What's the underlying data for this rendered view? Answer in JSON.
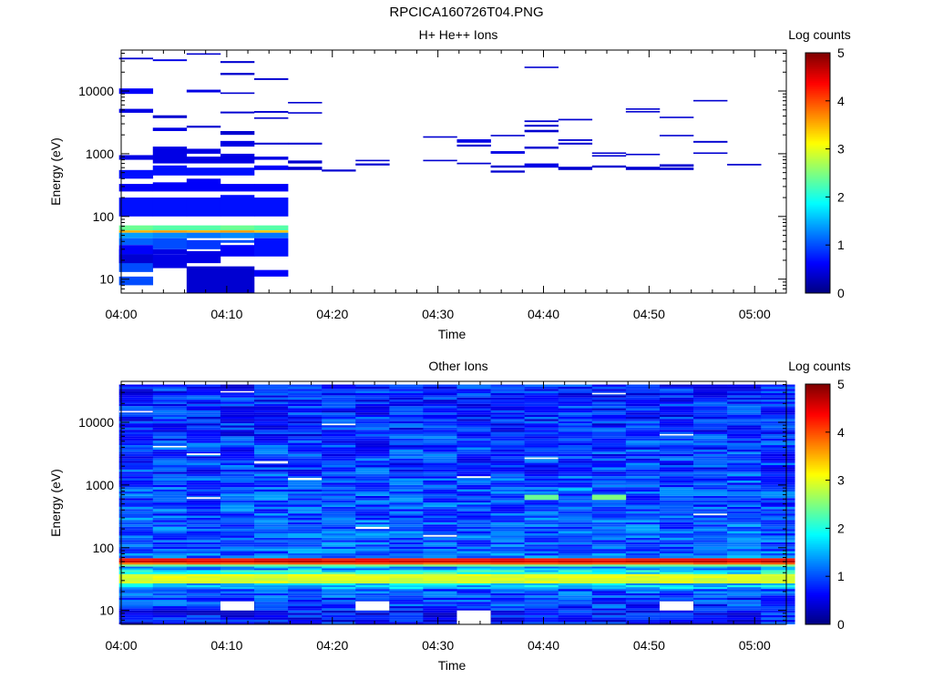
{
  "figure_title": "RPCICA160726T04.PNG",
  "colors": {
    "colormap": [
      "#00007f",
      "#0000ff",
      "#007fff",
      "#00ffff",
      "#7fff7f",
      "#ffff00",
      "#ff7f00",
      "#ff0000",
      "#7f0000"
    ],
    "background": "#ffffff",
    "axis": "#000000"
  },
  "chart_data": [
    {
      "type": "heatmap",
      "title": "H+ He++ Ions",
      "xlabel": "Time",
      "ylabel": "Energy (eV)",
      "x_ticks": [
        "04:00",
        "04:10",
        "04:20",
        "04:30",
        "04:40",
        "04:50",
        "05:00"
      ],
      "x_tick_minutes": [
        0,
        10,
        20,
        30,
        40,
        50,
        60
      ],
      "xlim_minutes": [
        0,
        63
      ],
      "y_scale": "log",
      "ylim": [
        6,
        45000
      ],
      "y_ticks": [
        "10",
        "100",
        "1000",
        "10000"
      ],
      "y_tick_values": [
        10,
        100,
        1000,
        10000
      ],
      "colorbar": {
        "label": "Log counts",
        "range": [
          0,
          5
        ],
        "ticks": [
          "0",
          "1",
          "2",
          "3",
          "4",
          "5"
        ]
      },
      "time_bins_minutes": [
        1.4,
        4.6,
        7.8,
        11.0,
        14.2,
        17.4,
        20.6,
        23.8,
        27.0,
        30.2,
        33.4,
        36.6,
        39.8,
        43.0,
        46.2,
        49.4,
        52.6,
        55.8,
        59.0,
        62.2
      ],
      "cells": [
        [
          0,
          8,
          11,
          1
        ],
        [
          0,
          13,
          30,
          1
        ],
        [
          0,
          60,
          72,
          2.4
        ],
        [
          0,
          55,
          60,
          3.5
        ],
        [
          0,
          45,
          55,
          1.4
        ],
        [
          0,
          35,
          45,
          1.1
        ],
        [
          0,
          25,
          35,
          0.6
        ],
        [
          0,
          18,
          25,
          0.4
        ],
        [
          0,
          100,
          200,
          0.7
        ],
        [
          0,
          250,
          330,
          0.6
        ],
        [
          0,
          400,
          550,
          0.7
        ],
        [
          0,
          800,
          950,
          0.5
        ],
        [
          0,
          4500,
          5200,
          0.5
        ],
        [
          0,
          9000,
          11000,
          0.6
        ],
        [
          0,
          32000,
          34000,
          0.4
        ],
        [
          1,
          15,
          25,
          0.5
        ],
        [
          1,
          60,
          72,
          2.3
        ],
        [
          1,
          55,
          60,
          3.6
        ],
        [
          1,
          45,
          55,
          1.3
        ],
        [
          1,
          30,
          45,
          1.0
        ],
        [
          1,
          25,
          30,
          0.5
        ],
        [
          1,
          100,
          200,
          0.7
        ],
        [
          1,
          250,
          350,
          0.6
        ],
        [
          1,
          450,
          650,
          0.7
        ],
        [
          1,
          700,
          1300,
          0.5
        ],
        [
          1,
          2300,
          2600,
          0.5
        ],
        [
          1,
          3700,
          4100,
          0.4
        ],
        [
          1,
          30000,
          32000,
          0.5
        ],
        [
          2,
          6,
          16,
          0.4
        ],
        [
          2,
          60,
          72,
          2.3
        ],
        [
          2,
          55,
          60,
          3.5
        ],
        [
          2,
          45,
          55,
          1.2
        ],
        [
          2,
          30,
          42,
          0.9
        ],
        [
          2,
          18,
          28,
          0.5
        ],
        [
          2,
          100,
          200,
          0.7
        ],
        [
          2,
          250,
          400,
          0.6
        ],
        [
          2,
          450,
          600,
          0.7
        ],
        [
          2,
          700,
          900,
          0.5
        ],
        [
          2,
          1000,
          1200,
          0.5
        ],
        [
          2,
          2600,
          2800,
          0.4
        ],
        [
          2,
          9500,
          10500,
          0.5
        ],
        [
          2,
          38000,
          40000,
          0.4
        ],
        [
          3,
          6,
          16,
          0.4
        ],
        [
          3,
          60,
          72,
          2.4
        ],
        [
          3,
          55,
          60,
          3.6
        ],
        [
          3,
          45,
          55,
          1.3
        ],
        [
          3,
          38,
          42,
          1.0
        ],
        [
          3,
          23,
          35,
          0.6
        ],
        [
          3,
          100,
          220,
          0.7
        ],
        [
          3,
          250,
          330,
          0.6
        ],
        [
          3,
          450,
          600,
          0.7
        ],
        [
          3,
          700,
          1000,
          0.5
        ],
        [
          3,
          1300,
          1600,
          0.5
        ],
        [
          3,
          2000,
          2300,
          0.4
        ],
        [
          3,
          4400,
          4700,
          0.4
        ],
        [
          3,
          9000,
          9500,
          0.4
        ],
        [
          3,
          18000,
          19500,
          0.4
        ],
        [
          3,
          28000,
          30000,
          0.4
        ],
        [
          4,
          11,
          14,
          0.6
        ],
        [
          4,
          60,
          72,
          2.3
        ],
        [
          4,
          55,
          60,
          3.4
        ],
        [
          4,
          45,
          55,
          1.2
        ],
        [
          4,
          23,
          45,
          0.7
        ],
        [
          4,
          100,
          200,
          0.7
        ],
        [
          4,
          250,
          330,
          0.6
        ],
        [
          4,
          550,
          650,
          0.6
        ],
        [
          4,
          800,
          900,
          0.5
        ],
        [
          4,
          1400,
          1500,
          0.4
        ],
        [
          4,
          3600,
          3800,
          0.4
        ],
        [
          4,
          4500,
          4800,
          0.4
        ],
        [
          4,
          15000,
          16000,
          0.4
        ],
        [
          5,
          550,
          620,
          0.4
        ],
        [
          5,
          700,
          780,
          0.4
        ],
        [
          5,
          1400,
          1500,
          0.4
        ],
        [
          5,
          4400,
          4600,
          0.4
        ],
        [
          5,
          6400,
          6700,
          0.4
        ],
        [
          6,
          520,
          560,
          0.4
        ],
        [
          7,
          650,
          700,
          0.4
        ],
        [
          7,
          760,
          800,
          0.4
        ],
        [
          9,
          760,
          800,
          0.4
        ],
        [
          9,
          1800,
          1900,
          0.4
        ],
        [
          10,
          1300,
          1400,
          0.4
        ],
        [
          10,
          1500,
          1700,
          0.5
        ],
        [
          10,
          680,
          720,
          0.4
        ],
        [
          11,
          500,
          540,
          0.4
        ],
        [
          11,
          600,
          650,
          0.4
        ],
        [
          11,
          1000,
          1100,
          0.5
        ],
        [
          11,
          1900,
          2000,
          0.4
        ],
        [
          12,
          600,
          700,
          0.5
        ],
        [
          12,
          1200,
          1300,
          0.4
        ],
        [
          12,
          2200,
          2400,
          0.4
        ],
        [
          12,
          2700,
          2900,
          0.4
        ],
        [
          12,
          3200,
          3400,
          0.4
        ],
        [
          12,
          23500,
          24500,
          0.4
        ],
        [
          13,
          550,
          620,
          0.4
        ],
        [
          13,
          1400,
          1500,
          0.4
        ],
        [
          13,
          1600,
          1700,
          0.4
        ],
        [
          13,
          3400,
          3600,
          0.4
        ],
        [
          14,
          600,
          650,
          0.4
        ],
        [
          14,
          900,
          950,
          0.4
        ],
        [
          14,
          1000,
          1050,
          0.4
        ],
        [
          15,
          550,
          620,
          0.4
        ],
        [
          15,
          950,
          1000,
          0.4
        ],
        [
          15,
          4600,
          4800,
          0.4
        ],
        [
          15,
          5100,
          5300,
          0.4
        ],
        [
          16,
          550,
          600,
          0.4
        ],
        [
          16,
          620,
          680,
          0.4
        ],
        [
          16,
          1900,
          2000,
          0.4
        ],
        [
          16,
          3700,
          3900,
          0.4
        ],
        [
          17,
          1000,
          1050,
          0.4
        ],
        [
          17,
          1500,
          1600,
          0.4
        ],
        [
          17,
          7000,
          7200,
          0.4
        ],
        [
          18,
          650,
          690,
          0.4
        ]
      ]
    },
    {
      "type": "heatmap",
      "title": "Other Ions",
      "xlabel": "Time",
      "ylabel": "Energy (eV)",
      "x_ticks": [
        "04:00",
        "04:10",
        "04:20",
        "04:30",
        "04:40",
        "04:50",
        "05:00"
      ],
      "x_tick_minutes": [
        0,
        10,
        20,
        30,
        40,
        50,
        60
      ],
      "xlim_minutes": [
        0,
        63
      ],
      "y_scale": "log",
      "ylim": [
        6,
        45000
      ],
      "y_ticks": [
        "10",
        "100",
        "1000",
        "10000"
      ],
      "y_tick_values": [
        10,
        100,
        1000,
        10000
      ],
      "colorbar": {
        "label": "Log counts",
        "range": [
          0,
          5
        ],
        "ticks": [
          "0",
          "1",
          "2",
          "3",
          "4",
          "5"
        ]
      },
      "time_bins_minutes": [
        1.4,
        4.6,
        7.8,
        11.0,
        14.2,
        17.4,
        20.6,
        23.8,
        27.0,
        30.2,
        33.4,
        36.6,
        39.8,
        43.0,
        46.2,
        49.4,
        52.6,
        55.8,
        59.0,
        62.2
      ],
      "energy_profile": [
        {
          "emin": 6,
          "emax": 10,
          "level": 0.7
        },
        {
          "emin": 10,
          "emax": 16,
          "level": 0.9
        },
        {
          "emin": 16,
          "emax": 22,
          "level": 1.0
        },
        {
          "emin": 22,
          "emax": 27,
          "level": 1.6
        },
        {
          "emin": 27,
          "emax": 33,
          "level": 2.9
        },
        {
          "emin": 33,
          "emax": 38,
          "level": 3.0
        },
        {
          "emin": 38,
          "emax": 44,
          "level": 1.9
        },
        {
          "emin": 44,
          "emax": 50,
          "level": 1.4
        },
        {
          "emin": 50,
          "emax": 54,
          "level": 2.4
        },
        {
          "emin": 54,
          "emax": 58,
          "level": 3.9
        },
        {
          "emin": 58,
          "emax": 63,
          "level": 4.6
        },
        {
          "emin": 63,
          "emax": 68,
          "level": 4.3
        },
        {
          "emin": 68,
          "emax": 75,
          "level": 1.2
        },
        {
          "emin": 75,
          "emax": 300,
          "level": 1.1
        },
        {
          "emin": 300,
          "emax": 1500,
          "level": 1.0
        },
        {
          "emin": 1500,
          "emax": 6000,
          "level": 0.9
        },
        {
          "emin": 6000,
          "emax": 40000,
          "level": 0.8
        }
      ],
      "gaps": [
        [
          3,
          10,
          14
        ],
        [
          7,
          10,
          14
        ],
        [
          10,
          6,
          10
        ],
        [
          16,
          10,
          14
        ],
        [
          0,
          14500,
          15200
        ],
        [
          1,
          4000,
          4200
        ],
        [
          2,
          3000,
          3200
        ],
        [
          3,
          30000,
          31500
        ],
        [
          4,
          2200,
          2400
        ],
        [
          5,
          1200,
          1300
        ],
        [
          7,
          200,
          215
        ],
        [
          9,
          150,
          160
        ],
        [
          10,
          1300,
          1380
        ],
        [
          12,
          2600,
          2750
        ],
        [
          14,
          28000,
          29500
        ],
        [
          16,
          6200,
          6500
        ],
        [
          17,
          330,
          350
        ],
        [
          2,
          600,
          640
        ],
        [
          6,
          9000,
          9500
        ]
      ],
      "highlights": [
        [
          12,
          580,
          700,
          2.4
        ],
        [
          14,
          580,
          700,
          2.5
        ],
        [
          13,
          800,
          900,
          1.6
        ]
      ]
    }
  ]
}
